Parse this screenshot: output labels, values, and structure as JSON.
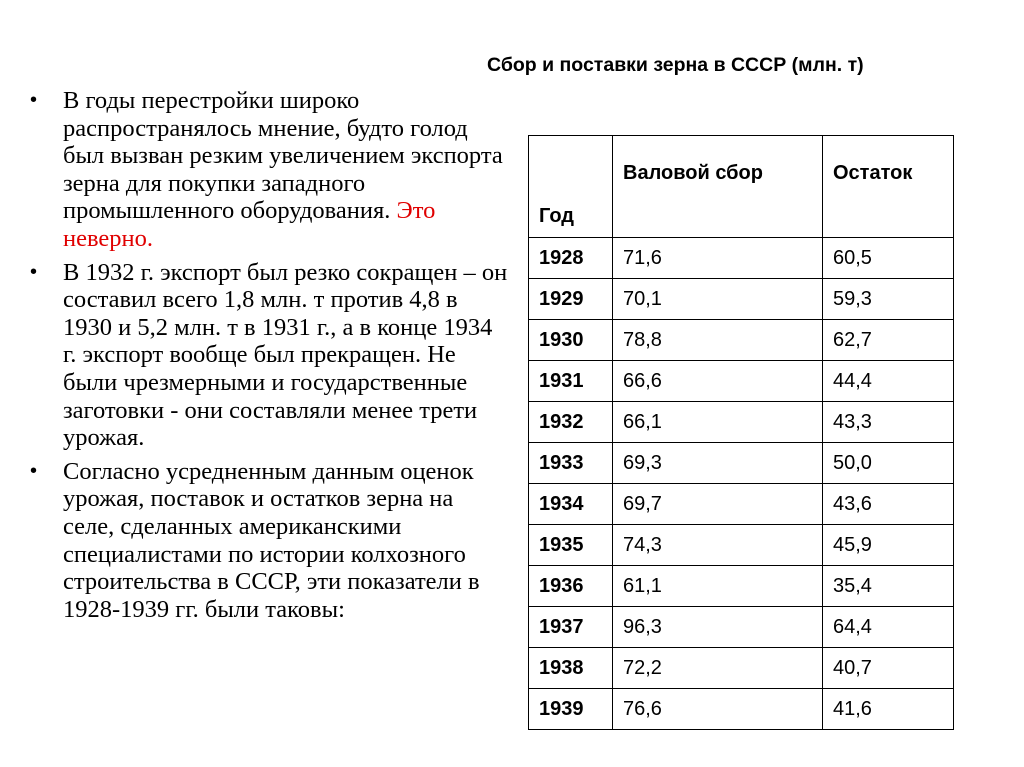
{
  "title": "Сбор и поставки зерна в СССР (млн. т)",
  "bullets": [
    {
      "text": "В годы перестройки широко распространялось мнение, будто голод был вызван резким увеличением экспорта зерна для покупки западного промышленного оборудования.",
      "highlight": "Это неверно."
    },
    {
      "text": "В 1932 г. экспорт был резко сокращен – он составил всего 1,8 млн. т против 4,8 в 1930 и 5,2 млн. т в 1931 г., а в конце 1934 г. экспорт вообще был прекращен. Не были чрезмерными и государственные заготовки - они составляли менее трети урожая."
    },
    {
      "text": "Согласно усредненным данным оценок урожая, поставок и остатков зерна на селе, сделанных американскими специалистами по истории колхозного строительства в СССР, эти показатели в 1928-1939 гг. были таковы:"
    }
  ],
  "colors": {
    "highlight": "#e00000"
  },
  "table": {
    "headers": [
      "Год",
      "Валовой сбор",
      "Остаток"
    ],
    "rows": [
      [
        "1928",
        "71,6",
        "60,5"
      ],
      [
        "1929",
        "70,1",
        "59,3"
      ],
      [
        "1930",
        "78,8",
        "62,7"
      ],
      [
        "1931",
        "66,6",
        "44,4"
      ],
      [
        "1932",
        "66,1",
        "43,3"
      ],
      [
        "1933",
        "69,3",
        "50,0"
      ],
      [
        "1934",
        "69,7",
        "43,6"
      ],
      [
        "1935",
        "74,3",
        "45,9"
      ],
      [
        "1936",
        "61,1",
        "35,4"
      ],
      [
        "1937",
        "96,3",
        "64,4"
      ],
      [
        "1938",
        "72,2",
        "40,7"
      ],
      [
        "1939",
        "76,6",
        "41,6"
      ]
    ]
  }
}
